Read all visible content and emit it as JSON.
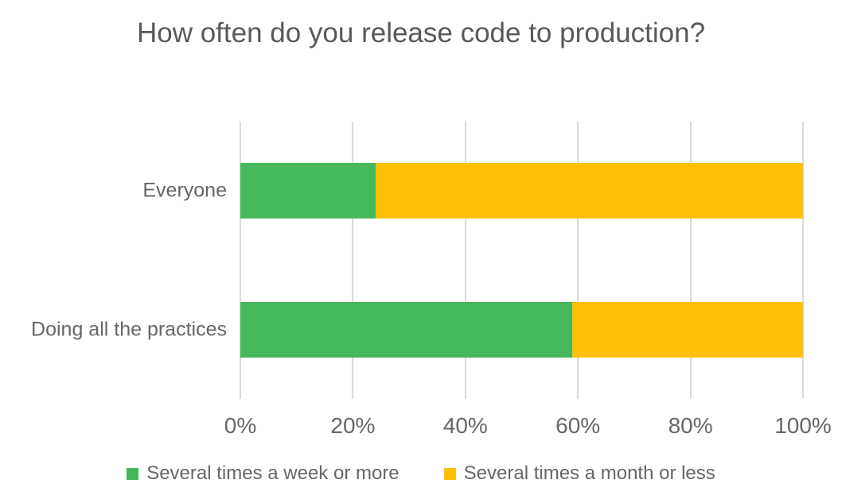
{
  "chart_data": {
    "type": "bar",
    "orientation": "horizontal",
    "stacked": true,
    "title": "How often do you release code to production?",
    "categories": [
      "Everyone",
      "Doing all the practices"
    ],
    "series": [
      {
        "name": "Several times a week or more",
        "color": "#45B85C",
        "values": [
          24,
          59
        ]
      },
      {
        "name": "Several times a month or less",
        "color": "#FEBF04",
        "values": [
          76,
          41
        ]
      }
    ],
    "x_ticks": [
      {
        "value": 0,
        "label": "0%"
      },
      {
        "value": 20,
        "label": "20%"
      },
      {
        "value": 40,
        "label": "40%"
      },
      {
        "value": 60,
        "label": "60%"
      },
      {
        "value": 80,
        "label": "80%"
      },
      {
        "value": 100,
        "label": "100%"
      }
    ],
    "xlim": [
      0,
      100
    ],
    "grid": "vertical",
    "gridline_color": "#DADADA",
    "legend_position": "bottom",
    "title_color": "#58595B",
    "text_color": "#666666"
  }
}
